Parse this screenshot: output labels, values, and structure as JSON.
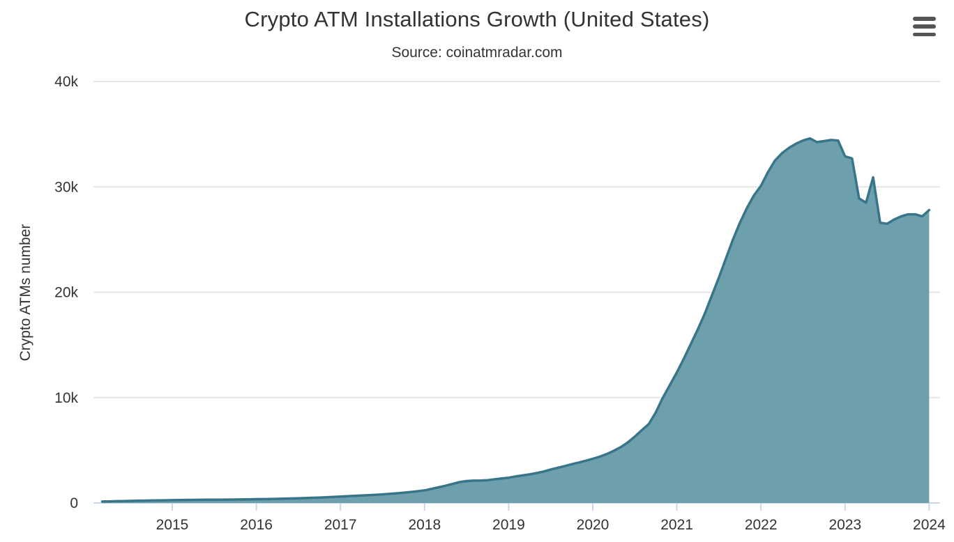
{
  "header": {
    "title": "Crypto ATM Installations Growth (United States)",
    "subtitle": "Source: coinatmradar.com"
  },
  "menu": {
    "icon": "hamburger-icon",
    "tooltip": "Chart context menu"
  },
  "colors": {
    "line": "#38758a",
    "fill": "#6d9fac",
    "grid": "#e6e6e6",
    "axis": "#ccd6eb",
    "text": "#333333",
    "menu_icon": "#555555"
  },
  "chart_data": {
    "type": "area",
    "title": "Crypto ATM Installations Growth (United States)",
    "subtitle": "Source: coinatmradar.com",
    "xlabel": "",
    "ylabel": "Crypto ATMs number",
    "ylim": [
      0,
      40000
    ],
    "grid": "horizontal-only",
    "legend": "none",
    "y_tick_values": [
      0,
      10000,
      20000,
      30000,
      40000
    ],
    "y_tick_labels": [
      "0",
      "10k",
      "20k",
      "30k",
      "40k"
    ],
    "x_tick_labels": [
      "2015",
      "2016",
      "2017",
      "2018",
      "2019",
      "2020",
      "2021",
      "2022",
      "2023",
      "2024"
    ],
    "series": [
      {
        "name": "Crypto ATMs number",
        "x": [
          "2014-03",
          "2014-04",
          "2014-05",
          "2014-06",
          "2014-07",
          "2014-08",
          "2014-09",
          "2014-10",
          "2014-11",
          "2014-12",
          "2015-01",
          "2015-02",
          "2015-03",
          "2015-04",
          "2015-05",
          "2015-06",
          "2015-07",
          "2015-08",
          "2015-09",
          "2015-10",
          "2015-11",
          "2015-12",
          "2016-01",
          "2016-02",
          "2016-03",
          "2016-04",
          "2016-05",
          "2016-06",
          "2016-07",
          "2016-08",
          "2016-09",
          "2016-10",
          "2016-11",
          "2016-12",
          "2017-01",
          "2017-02",
          "2017-03",
          "2017-04",
          "2017-05",
          "2017-06",
          "2017-07",
          "2017-08",
          "2017-09",
          "2017-10",
          "2017-11",
          "2017-12",
          "2018-01",
          "2018-02",
          "2018-03",
          "2018-04",
          "2018-05",
          "2018-06",
          "2018-07",
          "2018-08",
          "2018-09",
          "2018-10",
          "2018-11",
          "2018-12",
          "2019-01",
          "2019-02",
          "2019-03",
          "2019-04",
          "2019-05",
          "2019-06",
          "2019-07",
          "2019-08",
          "2019-09",
          "2019-10",
          "2019-11",
          "2019-12",
          "2020-01",
          "2020-02",
          "2020-03",
          "2020-04",
          "2020-05",
          "2020-06",
          "2020-07",
          "2020-08",
          "2020-09",
          "2020-10",
          "2020-11",
          "2020-12",
          "2021-01",
          "2021-02",
          "2021-03",
          "2021-04",
          "2021-05",
          "2021-06",
          "2021-07",
          "2021-08",
          "2021-09",
          "2021-10",
          "2021-11",
          "2021-12",
          "2022-01",
          "2022-02",
          "2022-03",
          "2022-04",
          "2022-05",
          "2022-06",
          "2022-07",
          "2022-08",
          "2022-09",
          "2022-10",
          "2022-11",
          "2022-12",
          "2023-01",
          "2023-02",
          "2023-03",
          "2023-04",
          "2023-05",
          "2023-06",
          "2023-07",
          "2023-08",
          "2023-09",
          "2023-10",
          "2023-11",
          "2023-12",
          "2024-01"
        ],
        "values": [
          140,
          155,
          170,
          185,
          200,
          212,
          224,
          236,
          248,
          260,
          272,
          282,
          290,
          297,
          303,
          308,
          313,
          318,
          324,
          331,
          340,
          350,
          361,
          373,
          386,
          400,
          415,
          432,
          450,
          470,
          493,
          518,
          546,
          578,
          612,
          643,
          675,
          709,
          744,
          781,
          821,
          866,
          916,
          974,
          1042,
          1118,
          1200,
          1340,
          1485,
          1640,
          1810,
          1985,
          2080,
          2125,
          2135,
          2170,
          2245,
          2330,
          2400,
          2520,
          2620,
          2720,
          2840,
          2990,
          3180,
          3340,
          3500,
          3680,
          3840,
          4010,
          4200,
          4400,
          4650,
          4950,
          5300,
          5750,
          6300,
          6900,
          7500,
          8600,
          10000,
          11200,
          12400,
          13700,
          15100,
          16500,
          18000,
          19700,
          21400,
          23200,
          25000,
          26600,
          28000,
          29200,
          30100,
          31400,
          32500,
          33200,
          33700,
          34100,
          34400,
          34600,
          34250,
          34350,
          34450,
          34400,
          32900,
          32700,
          28900,
          28500,
          30900,
          26600,
          26500,
          26900,
          27200,
          27400,
          27400,
          27200,
          27800
        ]
      }
    ]
  }
}
